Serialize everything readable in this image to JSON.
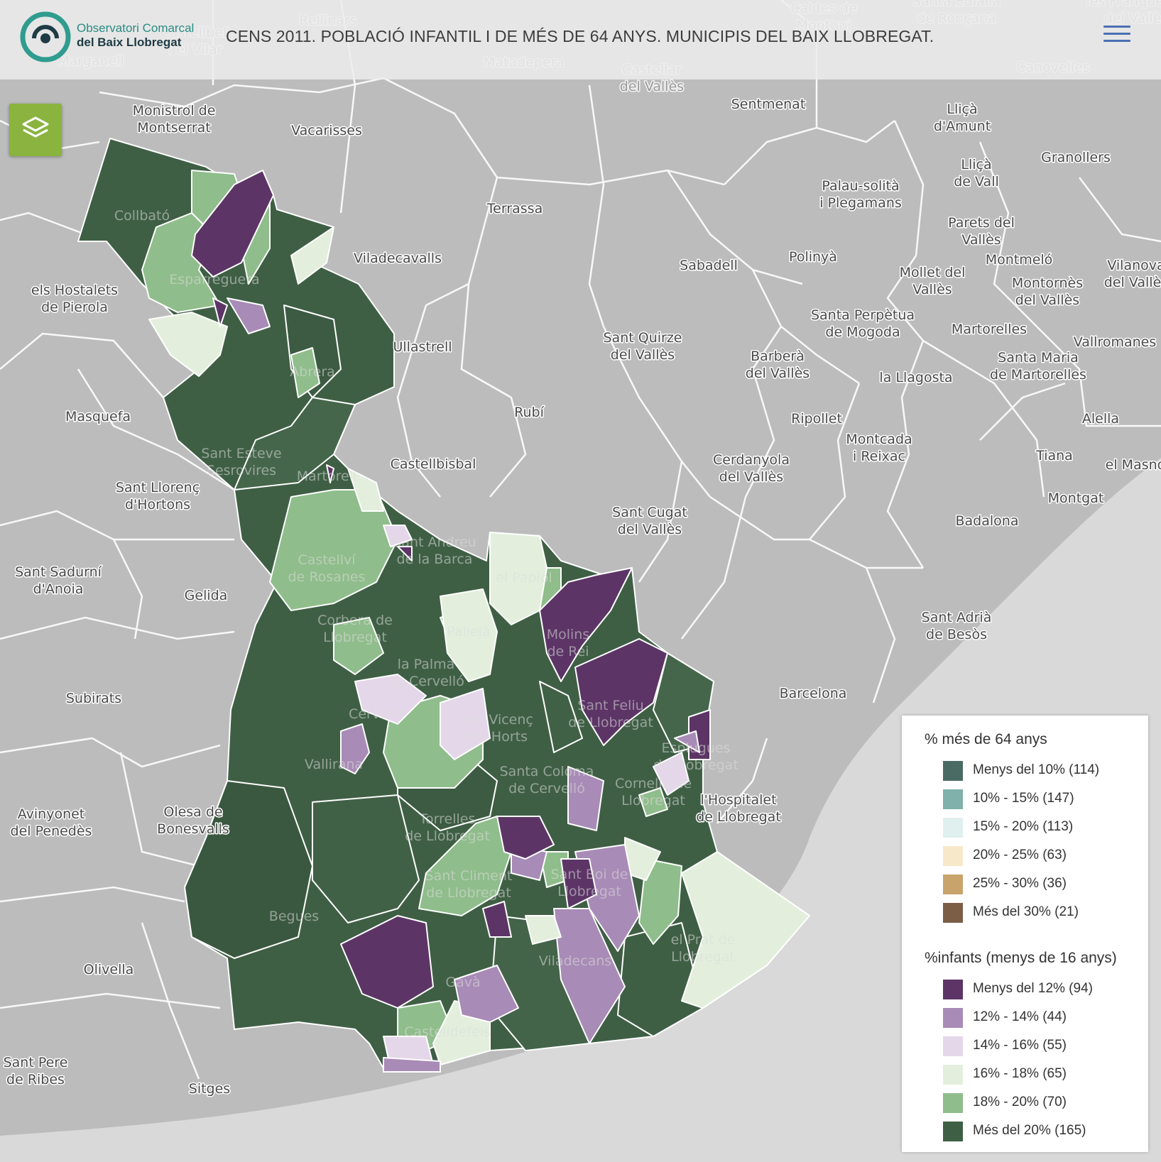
{
  "header": {
    "logo_line1": "Observatori Comarcal",
    "logo_line2": "del Baix Llobregat",
    "title": "CENS 2011. POBLACIÓ INFANTIL I DE MÉS DE 64 ANYS. MUNICIPIS DEL BAIX LLOBREGAT."
  },
  "controls": {
    "layers_icon": "layers-icon",
    "menu_icon": "hamburger-menu-icon"
  },
  "legend": {
    "group1": {
      "title": "% més de 64 anys",
      "items": [
        {
          "label": "Menys del 10% (114)",
          "color": "#4a6b63"
        },
        {
          "label": "10% - 15% (147)",
          "color": "#80b1ab"
        },
        {
          "label": "15% - 20% (113)",
          "color": "#dff0ee"
        },
        {
          "label": "20% - 25% (63)",
          "color": "#f6e8c9"
        },
        {
          "label": "25% - 30% (36)",
          "color": "#c9a36c"
        },
        {
          "label": "Més del 30% (21)",
          "color": "#7b5e45"
        }
      ]
    },
    "group2": {
      "title": "%infants (menys de 16 anys)",
      "items": [
        {
          "label": "Menys del 12% (94)",
          "color": "#5c3566"
        },
        {
          "label": "12% - 14% (44)",
          "color": "#a88bb6"
        },
        {
          "label": "14% - 16% (55)",
          "color": "#e5d7ea"
        },
        {
          "label": "16% - 18% (65)",
          "color": "#e3efdc"
        },
        {
          "label": "18% - 20% (70)",
          "color": "#8fbd8b"
        },
        {
          "label": "Més del 20% (165)",
          "color": "#3f5f45"
        }
      ]
    }
  },
  "map_labels": {
    "outside": [
      "Monistrol de Montserrat",
      "Vacarisses",
      "Terrassa",
      "Viladecavalls",
      "Sabadell",
      "Sentmenat",
      "Castellar del Vallès",
      "Matadepera",
      "Caldes de Montbui",
      "Santa Eulàlia de Ronçana",
      "Lliçà d'Amunt",
      "Lliçà de Vall",
      "Granollers",
      "Palau-solità i Plegamans",
      "Polinyà",
      "Parets del Vallès",
      "Montmeló",
      "Mollet del Vallès",
      "Montornès del Vallès",
      "Vilanova del Vallès",
      "Santa Perpètua de Mogoda",
      "Martorelles",
      "Vallromanes",
      "Santa Maria de Martorelles",
      "Sant Quirze del Vallès",
      "Barberà del Vallès",
      "la Llagosta",
      "Ullastrell",
      "Rubí",
      "Ripollet",
      "Montcada i Reixac",
      "Alella",
      "Tiana",
      "el Masnou",
      "Montgat",
      "Badalona",
      "Cerdanyola del Vallès",
      "Sant Cugat del Vallès",
      "Castellbisbal",
      "Masquefa",
      "els Hostalets de Pierola",
      "Sant Llorenç d'Hortons",
      "Sant Sadurní d'Anoia",
      "Gelida",
      "Subirats",
      "Sant Adrià de Besòs",
      "Barcelona",
      "l'Hospitalet de Llobregat",
      "Avinyonet del Penedès",
      "Olesa de Bonesvalls",
      "Olivella",
      "Sant Pere de Ribes",
      "Sitges",
      "Marganell",
      "Rellinars",
      "Castellbell i el Vilar",
      "Canovelles",
      "les Franqueses del Vallès"
    ],
    "inside": [
      "Collbató",
      "Esparreguera",
      "Sant Esteve Sesrovires",
      "Martorell",
      "Castellví de Rosanes",
      "Sant Andreu de la Barca",
      "el Papiol",
      "Molins de Rei",
      "Corbera de Llobregat",
      "Pallejà",
      "la Palma de Cervelló",
      "Sant Feliu de Llobregat",
      "Cervelló",
      "Sant Vicenç dels Horts",
      "Vallirana",
      "Santa Coloma de Cervelló",
      "Torrelles de Llobregat",
      "Sant Climent de Llobregat",
      "Sant Boi de Llobregat",
      "Begues",
      "Viladecans",
      "Gavà",
      "el Prat de Llobregat",
      "Castelldefels",
      "Cornellà de Llobregat",
      "Esplugues de Llobregat",
      "Abrera"
    ]
  }
}
